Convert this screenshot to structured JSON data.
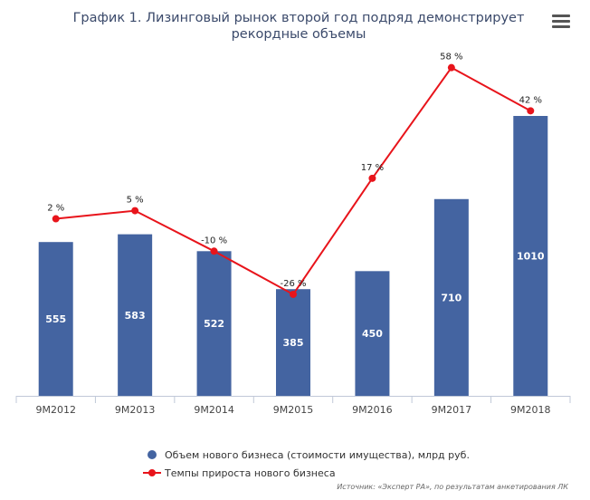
{
  "title": "График 1. Лизинговый рынок второй год подряд демонстрирует рекордные объемы",
  "menu_icon": "hamburger-menu-icon",
  "source": "Источник: «Эксперт РА», по результатам анкетирования ЛК",
  "colors": {
    "bar": "#4464a1",
    "line": "#e8141b",
    "axis": "#c0c8d8"
  },
  "chart_data": {
    "type": "bar",
    "categories": [
      "9M2012",
      "9M2013",
      "9M2014",
      "9M2015",
      "9M2016",
      "9M2017",
      "9M2018"
    ],
    "series": [
      {
        "name": "Объем нового бизнеса (стоимости имущества), млрд руб.",
        "type": "bar",
        "values": [
          555,
          583,
          522,
          385,
          450,
          710,
          1010
        ],
        "labels": [
          "555",
          "583",
          "522",
          "385",
          "450",
          "710",
          "1010"
        ]
      },
      {
        "name": "Темпы прироста нового бизнеса",
        "type": "line",
        "values": [
          2,
          5,
          -10,
          -26,
          17,
          58,
          42
        ],
        "labels": [
          "2 %",
          "5 %",
          "-10 %",
          "-26 %",
          "17 %",
          "58 %",
          "42 %"
        ]
      }
    ],
    "ylim": [
      0,
      1100
    ],
    "y2lim": [
      -35,
      70
    ],
    "legend_position": "bottom",
    "grid": false
  }
}
